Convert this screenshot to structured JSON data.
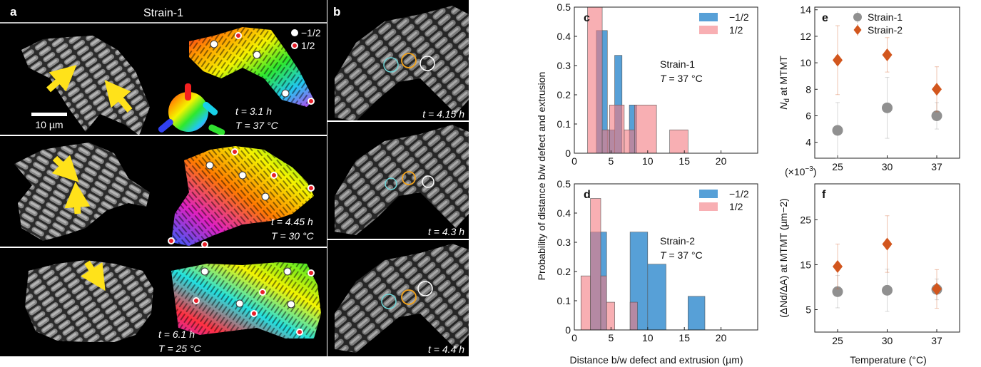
{
  "panels": {
    "a": {
      "letter": "a",
      "header": "Strain-1",
      "legend": [
        {
          "label": "−1/2",
          "color": "#ffffff"
        },
        {
          "label": "1/2",
          "color": "#e8202a"
        }
      ],
      "scale_bar": "10 µm",
      "rows": [
        {
          "time": "t = 3.1 h",
          "temp": "T = 37 °C"
        },
        {
          "time": "t = 4.45 h",
          "temp": "T = 30 °C"
        },
        {
          "time": "t = 6.1 h",
          "temp": "T = 25 °C"
        }
      ]
    },
    "b": {
      "letter": "b",
      "frames": [
        {
          "time": "t = 4.15 h"
        },
        {
          "time": "t = 4.3 h"
        },
        {
          "time": "t = 4.4 h"
        }
      ]
    }
  },
  "colors": {
    "blue": "#3a8fd0",
    "red": "#f47a80",
    "gray": "#909090",
    "orange": "#d2561d",
    "cyan_circle": "#6fd6d8",
    "orange_circle": "#f2a21a",
    "white_circle": "#ffffff",
    "arrow": "#ffe21a"
  },
  "shared_labels": {
    "cd_ylabel": "Probability of distance b/w defect and extrusion",
    "cd_xlabel": "Distance b/w defect and extrusion (µm)",
    "ef_xlabel": "Temperature (°C)"
  },
  "chart_data": [
    {
      "panel": "c",
      "type": "bar",
      "annotation": [
        "Strain-1",
        "T = 37 °C"
      ],
      "xlim": [
        0,
        25
      ],
      "ylim": [
        0,
        0.5
      ],
      "xticks": [
        0,
        5,
        10,
        15,
        20
      ],
      "yticks": [
        0,
        0.1,
        0.2,
        0.3,
        0.4,
        0.5
      ],
      "legend": "top-right",
      "series": [
        {
          "name": "−1/2",
          "bins": [
            [
              3,
              4.5,
              0.42
            ],
            [
              4.5,
              5.5,
              0.08
            ],
            [
              5.5,
              6.5,
              0.335
            ],
            [
              7.5,
              8.5,
              0.165
            ]
          ]
        },
        {
          "name": "1/2",
          "bins": [
            [
              1.8,
              3.8,
              0.5
            ],
            [
              3.8,
              4.8,
              0.08
            ],
            [
              4.8,
              6.8,
              0.165
            ],
            [
              6.8,
              8.2,
              0.08
            ],
            [
              8.2,
              11.2,
              0.165
            ],
            [
              13,
              15.5,
              0.08
            ]
          ]
        }
      ]
    },
    {
      "panel": "d",
      "type": "bar",
      "annotation": [
        "Strain-2",
        "T = 37 °C"
      ],
      "xlim": [
        0,
        25
      ],
      "ylim": [
        0,
        0.5
      ],
      "xticks": [
        0,
        5,
        10,
        15,
        20
      ],
      "yticks": [
        0,
        0.1,
        0.2,
        0.3,
        0.4,
        0.5
      ],
      "legend": "top-right",
      "series": [
        {
          "name": "−1/2",
          "bins": [
            [
              2.2,
              4.4,
              0.335
            ],
            [
              7.6,
              10,
              0.335
            ],
            [
              10,
              12.5,
              0.225
            ],
            [
              15.5,
              17.8,
              0.115
            ]
          ]
        },
        {
          "name": "1/2",
          "bins": [
            [
              0.9,
              2.2,
              0.185
            ],
            [
              2.2,
              3.6,
              0.45
            ],
            [
              3.6,
              4.4,
              0.185
            ],
            [
              4.4,
              5.5,
              0.095
            ],
            [
              7.6,
              8.6,
              0.095
            ]
          ]
        }
      ]
    },
    {
      "panel": "e",
      "type": "scatter",
      "ylabel_sym": "N",
      "ylabel_sub": "d",
      "ylabel_rest": " at MTMT",
      "x": [
        "25",
        "30",
        "37"
      ],
      "ylim": [
        2.8,
        14.2
      ],
      "yticks": [
        4,
        6,
        8,
        10,
        12,
        14
      ],
      "legend": "top-right",
      "series": [
        {
          "name": "Strain-1",
          "marker": "circle",
          "values": [
            4.9,
            6.6,
            6.0
          ],
          "err": [
            2.1,
            2.3,
            1.0
          ]
        },
        {
          "name": "Strain-2",
          "marker": "diamond",
          "values": [
            10.2,
            10.6,
            8.0
          ],
          "err": [
            2.6,
            1.3,
            1.7
          ]
        }
      ]
    },
    {
      "panel": "f",
      "type": "scatter",
      "multiplier": "(×10",
      "multiplier_exp": "−3",
      "ylabel": "(ΔNd/ΔA) at MTMT (µm−2)",
      "x": [
        "25",
        "30",
        "37"
      ],
      "ylim": [
        0,
        33
      ],
      "yticks": [
        5,
        15,
        25
      ],
      "series": [
        {
          "name": "Strain-1",
          "marker": "circle",
          "values": [
            9.0,
            9.3,
            9.5
          ],
          "err": [
            3.6,
            4.7,
            2.3
          ]
        },
        {
          "name": "Strain-2",
          "marker": "diamond",
          "values": [
            14.6,
            19.6,
            9.6
          ],
          "err": [
            5.0,
            6.3,
            4.3
          ]
        }
      ]
    }
  ]
}
